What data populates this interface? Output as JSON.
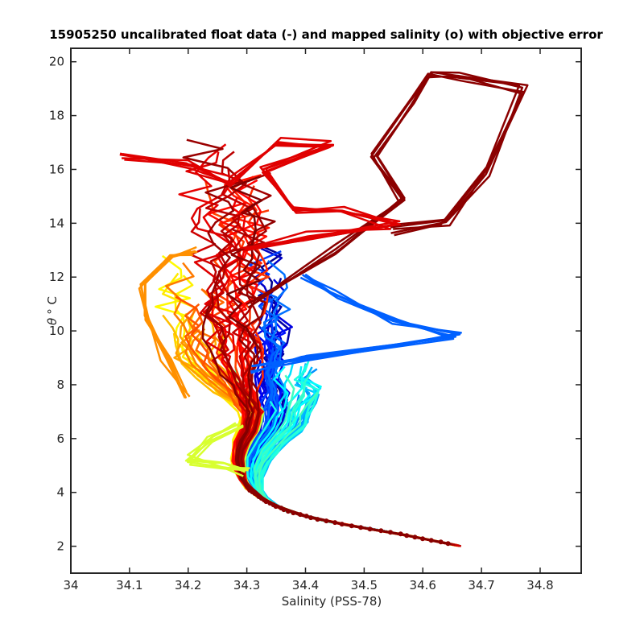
{
  "chart_data": {
    "type": "line",
    "title": "15905250 uncalibrated float data (-) and mapped salinity (o) with objective error",
    "xlabel": "Salinity (PSS-78)",
    "ylabel_symbol": "θ",
    "ylabel_rest": "° C",
    "xlim": [
      34,
      34.87
    ],
    "ylim": [
      1,
      20.5
    ],
    "xticks": [
      "34",
      "34.1",
      "34.2",
      "34.3",
      "34.4",
      "34.5",
      "34.6",
      "34.7",
      "34.8"
    ],
    "yticks": [
      "2",
      "4",
      "6",
      "8",
      "10",
      "12",
      "14",
      "16",
      "18",
      "20"
    ],
    "grid": false,
    "colormap": "jet",
    "colormap_stops": [
      "#00008f",
      "#0000ff",
      "#0080ff",
      "#00ffff",
      "#80ff80",
      "#ffff00",
      "#ff8000",
      "#ff0000",
      "#800000"
    ],
    "profile_count": 120,
    "mean_profile": [
      [
        34.665,
        2.0
      ],
      [
        34.62,
        2.2
      ],
      [
        34.55,
        2.5
      ],
      [
        34.48,
        2.75
      ],
      [
        34.42,
        3.0
      ],
      [
        34.37,
        3.3
      ],
      [
        34.33,
        3.7
      ],
      [
        34.305,
        4.1
      ],
      [
        34.29,
        4.6
      ],
      [
        34.285,
        5.2
      ],
      [
        34.29,
        5.8
      ],
      [
        34.305,
        6.4
      ],
      [
        34.31,
        7.0
      ],
      [
        34.305,
        7.6
      ],
      [
        34.3,
        8.2
      ],
      [
        34.3,
        8.8
      ],
      [
        34.298,
        9.5
      ],
      [
        34.295,
        10.2
      ],
      [
        34.29,
        11.0
      ],
      [
        34.29,
        12.0
      ]
    ],
    "anomalies": [
      {
        "name": "blue-high-salinity-intrusion",
        "color": "#0060ff",
        "points": [
          [
            34.31,
            8.5
          ],
          [
            34.4,
            9.0
          ],
          [
            34.55,
            9.5
          ],
          [
            34.66,
            9.85
          ],
          [
            34.55,
            10.3
          ],
          [
            34.45,
            11.4
          ],
          [
            34.4,
            12.0
          ]
        ]
      },
      {
        "name": "darkred-surface-excursion",
        "color": "#8b0000",
        "points": [
          [
            34.31,
            11.0
          ],
          [
            34.45,
            13.0
          ],
          [
            34.57,
            14.9
          ],
          [
            34.52,
            16.5
          ],
          [
            34.58,
            18.5
          ],
          [
            34.61,
            19.5
          ],
          [
            34.66,
            19.5
          ],
          [
            34.77,
            19.0
          ],
          [
            34.71,
            16.0
          ],
          [
            34.64,
            14.0
          ],
          [
            34.55,
            13.7
          ]
        ]
      },
      {
        "name": "red-surface-spread",
        "color": "#e00000",
        "points": [
          [
            34.09,
            16.5
          ],
          [
            34.2,
            16.2
          ],
          [
            34.27,
            15.5
          ],
          [
            34.35,
            17.0
          ],
          [
            34.44,
            17.0
          ],
          [
            34.33,
            16.0
          ],
          [
            34.38,
            14.5
          ],
          [
            34.46,
            14.5
          ],
          [
            34.55,
            14.0
          ],
          [
            34.4,
            13.5
          ],
          [
            34.3,
            13.0
          ]
        ]
      },
      {
        "name": "orange-fresh-tongue",
        "color": "#ff9000",
        "points": [
          [
            34.2,
            7.6
          ],
          [
            34.16,
            9.0
          ],
          [
            34.13,
            10.5
          ],
          [
            34.12,
            11.7
          ],
          [
            34.17,
            12.8
          ],
          [
            34.21,
            13.0
          ]
        ]
      },
      {
        "name": "yellow-green-fresh-dip",
        "color": "#d8ff30",
        "points": [
          [
            34.29,
            6.5
          ],
          [
            34.24,
            6.0
          ],
          [
            34.2,
            5.2
          ],
          [
            34.26,
            5.0
          ],
          [
            34.3,
            4.8
          ]
        ]
      }
    ]
  }
}
